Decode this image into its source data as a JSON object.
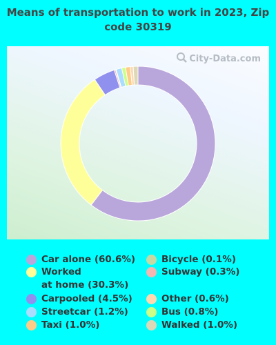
{
  "chart_data": {
    "type": "pie",
    "style": "donut",
    "title": "Means of transportation to work in 2023, Zip code 30319",
    "unit": "%",
    "series": [
      {
        "name": "Car alone",
        "value": 60.6,
        "legend": "Car alone (60.6%)",
        "color": "#b9a7db"
      },
      {
        "name": "Worked at home",
        "value": 30.3,
        "legend": "Worked\nat home (30.3%)",
        "color": "#ffff99"
      },
      {
        "name": "Carpooled",
        "value": 4.5,
        "legend": "Carpooled (4.5%)",
        "color": "#9090ee"
      },
      {
        "name": "Streetcar",
        "value": 1.2,
        "legend": "Streetcar (1.2%)",
        "color": "#aaddff"
      },
      {
        "name": "Taxi",
        "value": 1.0,
        "legend": "Taxi (1.0%)",
        "color": "#ffcc88"
      },
      {
        "name": "Bicycle",
        "value": 0.1,
        "legend": "Bicycle (0.1%)",
        "color": "#c6d9a5"
      },
      {
        "name": "Subway",
        "value": 0.3,
        "legend": "Subway (0.3%)",
        "color": "#f4b6b0"
      },
      {
        "name": "Other",
        "value": 0.6,
        "legend": "Other (0.6%)",
        "color": "#ffd8b0"
      },
      {
        "name": "Bus",
        "value": 0.8,
        "legend": "Bus (0.8%)",
        "color": "#ccff88"
      },
      {
        "name": "Walked",
        "value": 1.0,
        "legend": "Walked (1.0%)",
        "color": "#ddd9b8"
      }
    ],
    "draw_order": [
      "Car alone",
      "Worked at home",
      "Carpooled",
      "Subway",
      "Bicycle",
      "Streetcar",
      "Bus",
      "Taxi",
      "Other",
      "Walked"
    ],
    "legend_order": [
      "Car alone",
      "Worked at home",
      "Carpooled",
      "Streetcar",
      "Taxi",
      "Bicycle",
      "Subway",
      "Other",
      "Bus",
      "Walked"
    ]
  },
  "watermark": "City-Data.com",
  "background_color": "#00ffff"
}
